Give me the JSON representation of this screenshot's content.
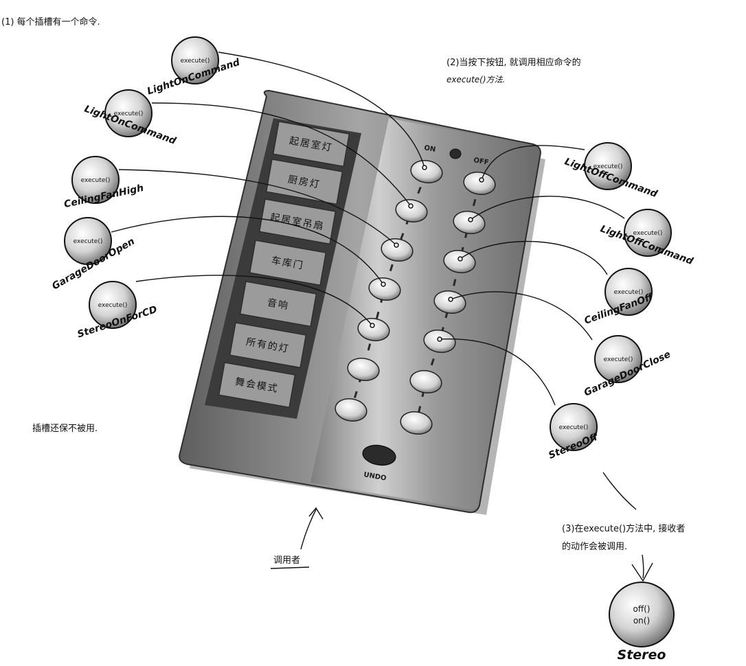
{
  "notes": {
    "n1": "(1) 每个插槽有一个命令.",
    "n2_line1": "(2)当按下按钮, 就调用相应命令的",
    "n2_line2": "execute()方法.",
    "n3_line1": "(3)在execute()方法中, 接收者",
    "n3_line2": "的动作会被调用.",
    "unused": "插槽还保不被用.",
    "invoker": "调用者"
  },
  "remote": {
    "on_label": "ON",
    "off_label": "OFF",
    "undo_label": "UNDO",
    "slots": [
      "起居室灯",
      "厨房灯",
      "起居室吊扇",
      "车库门",
      "音响",
      "所有的灯",
      "舞会模式"
    ]
  },
  "method_label": "execute()",
  "on_commands": [
    {
      "name": "LightOnCommand"
    },
    {
      "name": "LightOnCommand"
    },
    {
      "name": "CeilingFanHigh"
    },
    {
      "name": "GarageDoorOpen"
    },
    {
      "name": "StereoOnForCD"
    }
  ],
  "off_commands": [
    {
      "name": "LightOffCommand"
    },
    {
      "name": "LightOffCommand"
    },
    {
      "name": "CeilingFanOff"
    },
    {
      "name": "GarageDoorClose"
    },
    {
      "name": "StereoOff"
    }
  ],
  "receiver": {
    "name": "Stereo",
    "method1": "off()",
    "method2": "on()"
  },
  "colors": {
    "ink": "#111111",
    "remote_body": "#8f8f8f",
    "remote_dark": "#3a3a3a",
    "slot_face": "#9a9a9a",
    "button": "#d9d9d9"
  }
}
